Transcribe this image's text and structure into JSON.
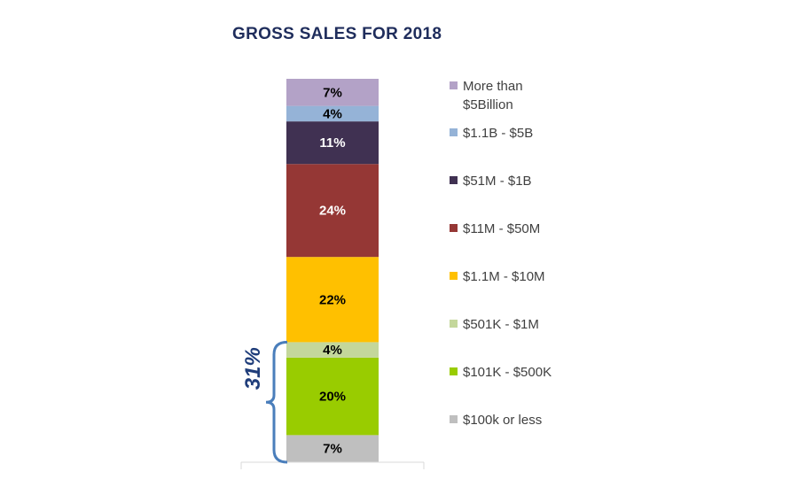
{
  "chart_data": {
    "type": "bar",
    "stacked": true,
    "title": "GROSS SALES FOR 2018",
    "xlabel": "",
    "ylabel": "",
    "unit": "%",
    "legend_position": "right",
    "grid": false,
    "series": [
      {
        "name": "$100k or less",
        "value": 7,
        "label": "7%",
        "color": "#bfbfbf",
        "label_color": "#000000"
      },
      {
        "name": "$101K - $500K",
        "value": 20,
        "label": "20%",
        "color": "#99cc00",
        "label_color": "#000000"
      },
      {
        "name": "$501K - $1M",
        "value": 4,
        "label": "4%",
        "color": "#c4d79b",
        "label_color": "#000000"
      },
      {
        "name": "$1.1M - $10M",
        "value": 22,
        "label": "22%",
        "color": "#ffc000",
        "label_color": "#000000"
      },
      {
        "name": "$11M - $50M",
        "value": 24,
        "label": "24%",
        "color": "#953735",
        "label_color": "#ffffff"
      },
      {
        "name": "$51M - $1B",
        "value": 11,
        "label": "11%",
        "color": "#403152",
        "label_color": "#ffffff"
      },
      {
        "name": "$1.1B - $5B",
        "value": 4,
        "label": "4%",
        "color": "#95b3d7",
        "label_color": "#000000"
      },
      {
        "name": "More than $5Billion",
        "value": 7,
        "label": "7%",
        "color": "#b3a2c7",
        "label_color": "#000000"
      }
    ],
    "annotations": [
      {
        "text": "31%",
        "spans_series": [
          "$100k or less",
          "$101K - $500K",
          "$501K - $1M"
        ],
        "color": "#4a7ebb"
      }
    ]
  },
  "legend_lines": {
    "More than $5Billion": [
      "More than",
      "$5Billion"
    ]
  }
}
